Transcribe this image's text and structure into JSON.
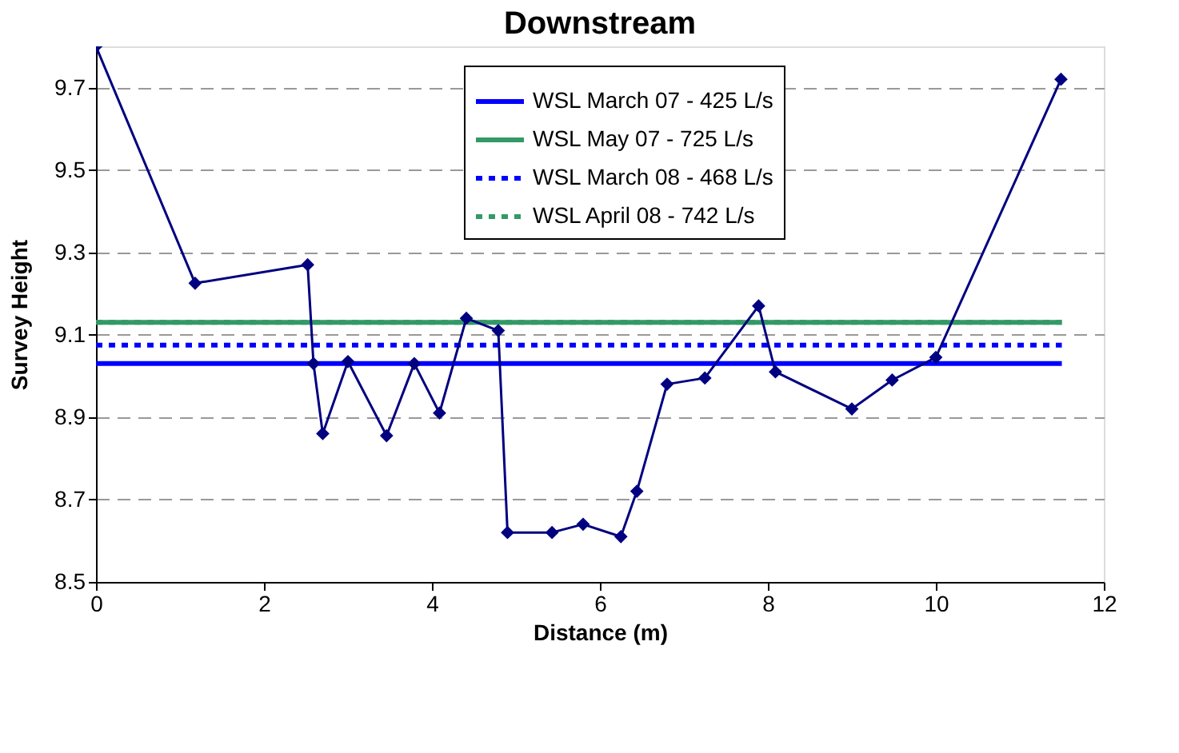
{
  "chart_data": {
    "type": "line",
    "title": "Downstream",
    "xlabel": "Distance (m)",
    "ylabel": "Survey Height",
    "xlim": [
      0,
      12
    ],
    "xticks": [
      0,
      2,
      4,
      6,
      8,
      10,
      12
    ],
    "ylim": [
      8.5,
      9.8
    ],
    "yticks": [
      8.5,
      8.7,
      8.9,
      9.1,
      9.3,
      9.5,
      9.7
    ],
    "grid": "y",
    "legend": "top",
    "series": [
      {
        "name": "WSL March 07 - 425 L/s",
        "color": "#0000ff",
        "line_style": "solid",
        "marker": "none",
        "x": [
          0,
          11.5
        ],
        "values": [
          9.03,
          9.03
        ]
      },
      {
        "name": "WSL May 07 - 725 L/s",
        "color": "#339966",
        "line_style": "solid",
        "marker": "none",
        "x": [
          0,
          11.5
        ],
        "values": [
          9.13,
          9.13
        ]
      },
      {
        "name": "WSL March 08 - 468 L/s",
        "color": "#0000ff",
        "line_style": "dotted",
        "marker": "none",
        "x": [
          0,
          11.5
        ],
        "values": [
          9.075,
          9.075
        ]
      },
      {
        "name": "WSL April 08 - 742 L/s",
        "color": "#339966",
        "line_style": "dotted",
        "marker": "none",
        "x": [
          0,
          11.5
        ],
        "values": [
          9.13,
          9.13
        ]
      },
      {
        "color": "#000080",
        "line_style": "solid",
        "marker": "diamond",
        "x": [
          0,
          1.18,
          2.52,
          2.59,
          2.7,
          3.0,
          3.46,
          3.79,
          4.09,
          4.41,
          4.79,
          4.9,
          5.43,
          5.8,
          6.25,
          6.44,
          6.8,
          7.25,
          7.89,
          8.09,
          9.0,
          9.48,
          10.0,
          11.49
        ],
        "values": [
          9.8,
          9.225,
          9.27,
          9.03,
          8.86,
          9.035,
          8.855,
          9.03,
          8.91,
          9.14,
          9.11,
          8.62,
          8.62,
          8.64,
          8.61,
          8.72,
          8.98,
          8.995,
          9.17,
          9.01,
          8.92,
          8.99,
          9.045,
          9.72
        ]
      }
    ]
  }
}
